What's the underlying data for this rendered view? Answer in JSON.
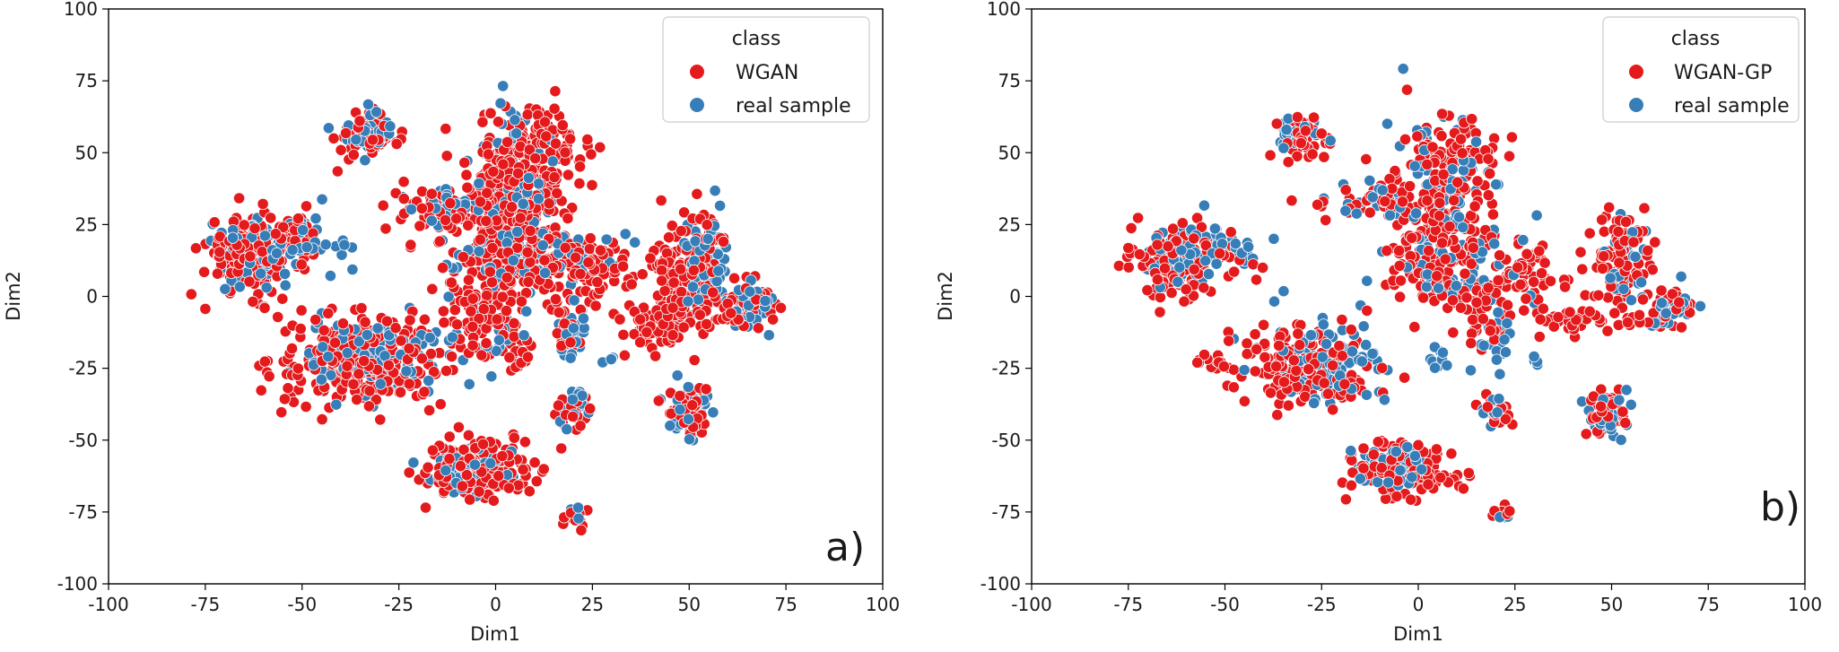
{
  "chart_data": [
    {
      "type": "scatter",
      "panel_label": "a)",
      "title": "",
      "xlabel": "Dim1",
      "ylabel": "Dim2",
      "xlim": [
        -100,
        100
      ],
      "ylim": [
        -100,
        100
      ],
      "xticks": [
        -100,
        -75,
        -50,
        -25,
        0,
        25,
        50,
        75,
        100
      ],
      "yticks": [
        -100,
        -75,
        -50,
        -25,
        0,
        25,
        50,
        75,
        100
      ],
      "grid": false,
      "legend": {
        "title": "class",
        "placement": "top-right"
      },
      "series": [
        {
          "name": "WGAN",
          "color": "#e41a1c",
          "clusters": [
            {
              "cx": -63,
              "cy": 15,
              "sx": 6,
              "sy": 7,
              "n": 150
            },
            {
              "cx": -52,
              "cy": 22,
              "sx": 3,
              "sy": 4,
              "n": 25
            },
            {
              "cx": -33,
              "cy": 55,
              "sx": 4,
              "sy": 4,
              "n": 60
            },
            {
              "cx": -35,
              "cy": -22,
              "sx": 11,
              "sy": 8,
              "n": 260
            },
            {
              "cx": -15,
              "cy": 30,
              "sx": 8,
              "sy": 5,
              "n": 60
            },
            {
              "cx": 5,
              "cy": 35,
              "sx": 6,
              "sy": 15,
              "n": 240
            },
            {
              "cx": 12,
              "cy": 50,
              "sx": 6,
              "sy": 8,
              "n": 90
            },
            {
              "cx": 8,
              "cy": 10,
              "sx": 11,
              "sy": 8,
              "n": 170
            },
            {
              "cx": 25,
              "cy": 10,
              "sx": 5,
              "sy": 5,
              "n": 60
            },
            {
              "cx": -3,
              "cy": -8,
              "sx": 5,
              "sy": 6,
              "n": 60
            },
            {
              "cx": 5,
              "cy": -20,
              "sx": 2,
              "sy": 3,
              "n": 15
            },
            {
              "cx": 50,
              "cy": 10,
              "sx": 5,
              "sy": 10,
              "n": 150
            },
            {
              "cx": 42,
              "cy": -10,
              "sx": 6,
              "sy": 4,
              "n": 70
            },
            {
              "cx": 64,
              "cy": -3,
              "sx": 5,
              "sy": 5,
              "n": 60
            },
            {
              "cx": 50,
              "cy": -40,
              "sx": 3,
              "sy": 4,
              "n": 60
            },
            {
              "cx": -5,
              "cy": -60,
              "sx": 7,
              "sy": 5,
              "n": 180
            },
            {
              "cx": 20,
              "cy": -40,
              "sx": 2,
              "sy": 3,
              "n": 25
            },
            {
              "cx": 20,
              "cy": -76,
              "sx": 1.5,
              "sy": 2,
              "n": 12
            },
            {
              "cx": 18,
              "cy": -12,
              "sx": 2,
              "sy": 5,
              "n": 25
            }
          ]
        },
        {
          "name": "real sample",
          "color": "#377eb8",
          "clusters": [
            {
              "cx": -62,
              "cy": 15,
              "sx": 6,
              "sy": 6,
              "n": 70
            },
            {
              "cx": -47,
              "cy": 20,
              "sx": 4,
              "sy": 5,
              "n": 20
            },
            {
              "cx": -32,
              "cy": 57,
              "sx": 3,
              "sy": 3,
              "n": 40
            },
            {
              "cx": -30,
              "cy": -20,
              "sx": 10,
              "sy": 7,
              "n": 110
            },
            {
              "cx": -12,
              "cy": 32,
              "sx": 6,
              "sy": 3,
              "n": 30
            },
            {
              "cx": 5,
              "cy": 40,
              "sx": 6,
              "sy": 14,
              "n": 70
            },
            {
              "cx": 10,
              "cy": 12,
              "sx": 10,
              "sy": 6,
              "n": 60
            },
            {
              "cx": 20,
              "cy": -13,
              "sx": 2,
              "sy": 5,
              "n": 25
            },
            {
              "cx": 30,
              "cy": -22,
              "sx": 1,
              "sy": 1,
              "n": 4
            },
            {
              "cx": 54,
              "cy": 10,
              "sx": 3,
              "sy": 9,
              "n": 60
            },
            {
              "cx": 66,
              "cy": -3,
              "sx": 3,
              "sy": 4,
              "n": 30
            },
            {
              "cx": 49,
              "cy": -40,
              "sx": 3,
              "sy": 4,
              "n": 40
            },
            {
              "cx": -8,
              "cy": -60,
              "sx": 5,
              "sy": 4,
              "n": 70
            },
            {
              "cx": 20,
              "cy": -40,
              "sx": 2,
              "sy": 3,
              "n": 12
            },
            {
              "cx": 21,
              "cy": -76,
              "sx": 1,
              "sy": 1.5,
              "n": 6
            },
            {
              "cx": -2,
              "cy": -10,
              "sx": 5,
              "sy": 5,
              "n": 20
            }
          ]
        }
      ]
    },
    {
      "type": "scatter",
      "panel_label": "b)",
      "title": "",
      "xlabel": "Dim1",
      "ylabel": "Dim2",
      "xlim": [
        -100,
        100
      ],
      "ylim": [
        -100,
        100
      ],
      "xticks": [
        -100,
        -75,
        -50,
        -25,
        0,
        25,
        50,
        75,
        100
      ],
      "yticks": [
        -100,
        -75,
        -50,
        -25,
        0,
        25,
        50,
        75,
        100
      ],
      "grid": false,
      "legend": {
        "title": "class",
        "placement": "top-right"
      },
      "series": [
        {
          "name": "WGAN-GP",
          "color": "#e41a1c",
          "clusters": [
            {
              "cx": -63,
              "cy": 12,
              "sx": 6,
              "sy": 7,
              "n": 100
            },
            {
              "cx": -50,
              "cy": 14,
              "sx": 4,
              "sy": 4,
              "n": 20
            },
            {
              "cx": -31,
              "cy": 56,
              "sx": 4,
              "sy": 4,
              "n": 50
            },
            {
              "cx": -30,
              "cy": -25,
              "sx": 9,
              "sy": 7,
              "n": 160
            },
            {
              "cx": -53,
              "cy": -23,
              "sx": 2,
              "sy": 1.5,
              "n": 15
            },
            {
              "cx": -10,
              "cy": 33,
              "sx": 8,
              "sy": 3,
              "n": 40
            },
            {
              "cx": 5,
              "cy": 30,
              "sx": 6,
              "sy": 14,
              "n": 150
            },
            {
              "cx": 10,
              "cy": 50,
              "sx": 6,
              "sy": 6,
              "n": 60
            },
            {
              "cx": 8,
              "cy": 5,
              "sx": 11,
              "sy": 8,
              "n": 120
            },
            {
              "cx": 28,
              "cy": 8,
              "sx": 4,
              "sy": 5,
              "n": 40
            },
            {
              "cx": 52,
              "cy": 12,
              "sx": 5,
              "sy": 9,
              "n": 100
            },
            {
              "cx": 42,
              "cy": -8,
              "sx": 6,
              "sy": 3,
              "n": 40
            },
            {
              "cx": 65,
              "cy": -5,
              "sx": 4,
              "sy": 4,
              "n": 40
            },
            {
              "cx": 49,
              "cy": -40,
              "sx": 3,
              "sy": 4,
              "n": 40
            },
            {
              "cx": -5,
              "cy": -60,
              "sx": 7,
              "sy": 5,
              "n": 130
            },
            {
              "cx": 20,
              "cy": -40,
              "sx": 2,
              "sy": 3,
              "n": 20
            },
            {
              "cx": 21,
              "cy": -76,
              "sx": 1.5,
              "sy": 2,
              "n": 10
            },
            {
              "cx": 18,
              "cy": -12,
              "sx": 2,
              "sy": 4,
              "n": 15
            }
          ]
        },
        {
          "name": "real sample",
          "color": "#377eb8",
          "clusters": [
            {
              "cx": -62,
              "cy": 15,
              "sx": 5,
              "sy": 6,
              "n": 60
            },
            {
              "cx": -47,
              "cy": 18,
              "sx": 4,
              "sy": 5,
              "n": 18
            },
            {
              "cx": -32,
              "cy": 57,
              "sx": 3,
              "sy": 3,
              "n": 35
            },
            {
              "cx": -25,
              "cy": -22,
              "sx": 9,
              "sy": 7,
              "n": 100
            },
            {
              "cx": -10,
              "cy": 33,
              "sx": 6,
              "sy": 3,
              "n": 20
            },
            {
              "cx": 5,
              "cy": 38,
              "sx": 6,
              "sy": 13,
              "n": 60
            },
            {
              "cx": 10,
              "cy": 10,
              "sx": 10,
              "sy": 6,
              "n": 50
            },
            {
              "cx": 20,
              "cy": -15,
              "sx": 2,
              "sy": 5,
              "n": 20
            },
            {
              "cx": 30,
              "cy": -22,
              "sx": 1,
              "sy": 1,
              "n": 4
            },
            {
              "cx": 54,
              "cy": 12,
              "sx": 3,
              "sy": 8,
              "n": 45
            },
            {
              "cx": 66,
              "cy": -3,
              "sx": 3,
              "sy": 4,
              "n": 25
            },
            {
              "cx": 49,
              "cy": -40,
              "sx": 3,
              "sy": 4,
              "n": 35
            },
            {
              "cx": -8,
              "cy": -60,
              "sx": 5,
              "sy": 4,
              "n": 60
            },
            {
              "cx": 20,
              "cy": -40,
              "sx": 2,
              "sy": 3,
              "n": 10
            },
            {
              "cx": 21,
              "cy": -76,
              "sx": 1,
              "sy": 1.5,
              "n": 5
            },
            {
              "cx": 5,
              "cy": -22,
              "sx": 2,
              "sy": 3,
              "n": 10
            }
          ]
        }
      ]
    }
  ]
}
